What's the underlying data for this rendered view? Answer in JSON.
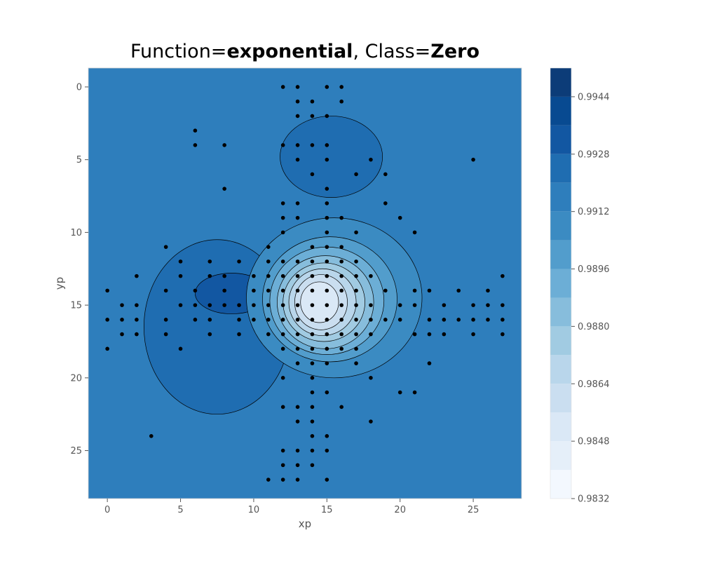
{
  "title": {
    "prefix": "Function=",
    "function_name": "exponential",
    "separator": ", Class=",
    "class_name": "Zero"
  },
  "chart_data": {
    "type": "heatmap",
    "subtype": "filled-contour with scatter overlay",
    "xlabel": "xp",
    "ylabel": "yp",
    "xlim": [
      -1.3,
      28.3
    ],
    "ylim": [
      -1.3,
      28.3
    ],
    "y_inverted": true,
    "x_ticks": [
      0,
      5,
      10,
      15,
      20,
      25
    ],
    "y_ticks": [
      0,
      5,
      10,
      15,
      20,
      25
    ],
    "grid": false,
    "colormap": "Blues",
    "colorbar": {
      "range": [
        0.9832,
        0.9952
      ],
      "tick_labels": [
        "0.9832",
        "0.9848",
        "0.9864",
        "0.9880",
        "0.9896",
        "0.9912",
        "0.9928",
        "0.9944"
      ],
      "tick_values": [
        0.9832,
        0.9848,
        0.9864,
        0.988,
        0.9896,
        0.9912,
        0.9928,
        0.9944
      ],
      "colors": [
        "#f3f8fe",
        "#e5eff9",
        "#dae8f6",
        "#cadef0",
        "#b9d6eb",
        "#a1cbe2",
        "#87bddc",
        "#6caed6",
        "#529dcc",
        "#3b8bc2",
        "#2e7ebc",
        "#1f6db1",
        "#1257a2",
        "#084a91",
        "#0c3c78"
      ]
    },
    "background_level": 0.9912,
    "background_color": "#2e7ebc",
    "regions": [
      {
        "level": 0.9928,
        "color": "#1f6db1",
        "cx": 7.5,
        "cy": 16.5,
        "rx": 5.0,
        "ry": 6.0
      },
      {
        "level": 0.9936,
        "color": "#1257a2",
        "cx": 8.5,
        "cy": 14.2,
        "rx": 2.5,
        "ry": 1.4
      },
      {
        "level": 0.9928,
        "color": "#1f6db1",
        "cx": 15.3,
        "cy": 4.8,
        "rx": 3.5,
        "ry": 2.8
      },
      {
        "level": 0.9904,
        "color": "#3b8bc2",
        "cx": 15.5,
        "cy": 14.5,
        "rx": 6.0,
        "ry": 5.5
      },
      {
        "level": 0.9896,
        "color": "#529dcc",
        "cx": 15.2,
        "cy": 14.6,
        "rx": 4.6,
        "ry": 4.3
      },
      {
        "level": 0.9888,
        "color": "#6caed6",
        "cx": 15.0,
        "cy": 14.7,
        "rx": 3.9,
        "ry": 3.7
      },
      {
        "level": 0.988,
        "color": "#87bddc",
        "cx": 14.9,
        "cy": 14.8,
        "rx": 3.3,
        "ry": 3.2
      },
      {
        "level": 0.9872,
        "color": "#a1cbe2",
        "cx": 14.8,
        "cy": 14.8,
        "rx": 2.8,
        "ry": 2.7
      },
      {
        "level": 0.9864,
        "color": "#b9d6eb",
        "cx": 14.7,
        "cy": 14.8,
        "rx": 2.3,
        "ry": 2.3
      },
      {
        "level": 0.9856,
        "color": "#cadef0",
        "cx": 14.6,
        "cy": 14.8,
        "rx": 1.8,
        "ry": 1.9
      },
      {
        "level": 0.9848,
        "color": "#dae8f6",
        "cx": 14.5,
        "cy": 14.8,
        "rx": 1.3,
        "ry": 1.4
      }
    ],
    "points": [
      [
        12,
        0
      ],
      [
        13,
        0
      ],
      [
        15,
        0
      ],
      [
        16,
        0
      ],
      [
        13,
        1
      ],
      [
        14,
        1
      ],
      [
        16,
        1
      ],
      [
        13,
        2
      ],
      [
        14,
        2
      ],
      [
        15,
        2
      ],
      [
        6,
        3
      ],
      [
        6,
        4
      ],
      [
        8,
        4
      ],
      [
        12,
        4
      ],
      [
        13,
        4
      ],
      [
        14,
        4
      ],
      [
        15,
        4
      ],
      [
        13,
        5
      ],
      [
        15,
        5
      ],
      [
        18,
        5
      ],
      [
        25,
        5
      ],
      [
        14,
        6
      ],
      [
        17,
        6
      ],
      [
        19,
        6
      ],
      [
        15,
        7
      ],
      [
        8,
        7
      ],
      [
        12,
        8
      ],
      [
        13,
        8
      ],
      [
        15,
        8
      ],
      [
        19,
        8
      ],
      [
        12,
        9
      ],
      [
        13,
        9
      ],
      [
        15,
        9
      ],
      [
        16,
        9
      ],
      [
        20,
        9
      ],
      [
        12,
        10
      ],
      [
        15,
        10
      ],
      [
        17,
        10
      ],
      [
        21,
        10
      ],
      [
        4,
        11
      ],
      [
        11,
        11
      ],
      [
        14,
        11
      ],
      [
        15,
        11
      ],
      [
        16,
        11
      ],
      [
        5,
        12
      ],
      [
        7,
        12
      ],
      [
        9,
        12
      ],
      [
        11,
        12
      ],
      [
        12,
        12
      ],
      [
        13,
        12
      ],
      [
        14,
        12
      ],
      [
        15,
        12
      ],
      [
        16,
        12
      ],
      [
        17,
        12
      ],
      [
        2,
        13
      ],
      [
        5,
        13
      ],
      [
        7,
        13
      ],
      [
        8,
        13
      ],
      [
        10,
        13
      ],
      [
        11,
        13
      ],
      [
        12,
        13
      ],
      [
        13,
        13
      ],
      [
        14,
        13
      ],
      [
        15,
        13
      ],
      [
        16,
        13
      ],
      [
        17,
        13
      ],
      [
        18,
        13
      ],
      [
        27,
        13
      ],
      [
        0,
        14
      ],
      [
        4,
        14
      ],
      [
        6,
        14
      ],
      [
        8,
        14
      ],
      [
        10,
        14
      ],
      [
        11,
        14
      ],
      [
        12,
        14
      ],
      [
        13,
        14
      ],
      [
        14,
        14
      ],
      [
        15,
        14
      ],
      [
        16,
        14
      ],
      [
        17,
        14
      ],
      [
        19,
        14
      ],
      [
        21,
        14
      ],
      [
        22,
        14
      ],
      [
        24,
        14
      ],
      [
        26,
        14
      ],
      [
        1,
        15
      ],
      [
        2,
        15
      ],
      [
        5,
        15
      ],
      [
        6,
        15
      ],
      [
        7,
        15
      ],
      [
        8,
        15
      ],
      [
        9,
        15
      ],
      [
        10,
        15
      ],
      [
        11,
        15
      ],
      [
        12,
        15
      ],
      [
        13,
        15
      ],
      [
        14,
        15
      ],
      [
        15,
        15
      ],
      [
        16,
        15
      ],
      [
        17,
        15
      ],
      [
        18,
        15
      ],
      [
        20,
        15
      ],
      [
        21,
        15
      ],
      [
        23,
        15
      ],
      [
        25,
        15
      ],
      [
        26,
        15
      ],
      [
        27,
        15
      ],
      [
        0,
        16
      ],
      [
        1,
        16
      ],
      [
        2,
        16
      ],
      [
        4,
        16
      ],
      [
        6,
        16
      ],
      [
        7,
        16
      ],
      [
        9,
        16
      ],
      [
        10,
        16
      ],
      [
        11,
        16
      ],
      [
        12,
        16
      ],
      [
        13,
        16
      ],
      [
        14,
        16
      ],
      [
        15,
        16
      ],
      [
        16,
        16
      ],
      [
        17,
        16
      ],
      [
        18,
        16
      ],
      [
        19,
        16
      ],
      [
        20,
        16
      ],
      [
        22,
        16
      ],
      [
        23,
        16
      ],
      [
        24,
        16
      ],
      [
        25,
        16
      ],
      [
        26,
        16
      ],
      [
        27,
        16
      ],
      [
        1,
        17
      ],
      [
        2,
        17
      ],
      [
        4,
        17
      ],
      [
        7,
        17
      ],
      [
        9,
        17
      ],
      [
        11,
        17
      ],
      [
        12,
        17
      ],
      [
        13,
        17
      ],
      [
        14,
        17
      ],
      [
        15,
        17
      ],
      [
        16,
        17
      ],
      [
        17,
        17
      ],
      [
        18,
        17
      ],
      [
        21,
        17
      ],
      [
        22,
        17
      ],
      [
        23,
        17
      ],
      [
        25,
        17
      ],
      [
        27,
        17
      ],
      [
        0,
        18
      ],
      [
        5,
        18
      ],
      [
        12,
        18
      ],
      [
        13,
        18
      ],
      [
        14,
        18
      ],
      [
        15,
        18
      ],
      [
        16,
        18
      ],
      [
        17,
        18
      ],
      [
        13,
        19
      ],
      [
        14,
        19
      ],
      [
        15,
        19
      ],
      [
        17,
        19
      ],
      [
        22,
        19
      ],
      [
        12,
        20
      ],
      [
        14,
        20
      ],
      [
        18,
        20
      ],
      [
        20,
        21
      ],
      [
        21,
        21
      ],
      [
        14,
        21
      ],
      [
        15,
        21
      ],
      [
        12,
        22
      ],
      [
        13,
        22
      ],
      [
        14,
        22
      ],
      [
        16,
        22
      ],
      [
        13,
        23
      ],
      [
        14,
        23
      ],
      [
        18,
        23
      ],
      [
        3,
        24
      ],
      [
        14,
        24
      ],
      [
        15,
        24
      ],
      [
        12,
        25
      ],
      [
        13,
        25
      ],
      [
        14,
        25
      ],
      [
        15,
        25
      ],
      [
        12,
        26
      ],
      [
        13,
        26
      ],
      [
        14,
        26
      ],
      [
        11,
        27
      ],
      [
        12,
        27
      ],
      [
        13,
        27
      ],
      [
        15,
        27
      ]
    ]
  }
}
